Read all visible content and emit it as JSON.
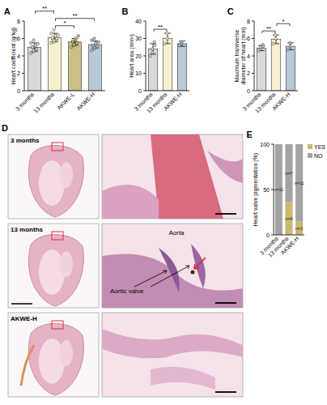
{
  "chart_data": [
    {
      "panel": "A",
      "type": "bar",
      "ylabel": "Heart coefficient (g/kg)",
      "categories": [
        "3 months",
        "13 months",
        "AKWE-L",
        "AKWE-H"
      ],
      "values": [
        5.0,
        6.1,
        5.6,
        5.3
      ],
      "errors": [
        0.5,
        0.5,
        0.4,
        0.4
      ],
      "points": [
        [
          4.3,
          4.5,
          4.6,
          4.7,
          4.8,
          5.0,
          5.0,
          5.1,
          5.2,
          5.4,
          5.5,
          5.8
        ],
        [
          5.5,
          5.6,
          5.8,
          5.9,
          6.0,
          6.0,
          6.1,
          6.2,
          6.3,
          6.4,
          6.6,
          7.0
        ],
        [
          5.0,
          5.2,
          5.3,
          5.4,
          5.5,
          5.6,
          5.7,
          5.8,
          6.0,
          6.3
        ],
        [
          4.6,
          4.8,
          5.0,
          5.0,
          5.1,
          5.2,
          5.2,
          5.3,
          5.5,
          5.6,
          5.8,
          6.0
        ]
      ],
      "colors": [
        "#d9d9d9",
        "#f7f0cf",
        "#cdbf8a",
        "#b9c9d6"
      ],
      "ylim": [
        0,
        8
      ],
      "yticks": [
        0,
        2,
        4,
        6,
        8
      ],
      "significance": [
        {
          "between": [
            "13 months",
            "AKWE-L"
          ],
          "label": "*"
        },
        {
          "between": [
            "13 months",
            "AKWE-H"
          ],
          "label": "**"
        },
        {
          "between": [
            "3 months",
            "13 months"
          ],
          "label": "**"
        }
      ]
    },
    {
      "panel": "B",
      "type": "bar",
      "ylabel": "Heart area (mm²)",
      "categories": [
        "3 months",
        "13 months",
        "AKWE-H"
      ],
      "values": [
        24,
        30,
        27
      ],
      "errors": [
        3,
        3,
        1.5
      ],
      "points": [
        [
          20,
          22,
          24,
          26,
          28
        ],
        [
          27,
          30,
          33
        ],
        [
          26,
          27,
          28
        ]
      ],
      "colors": [
        "#d9d9d9",
        "#f7f0cf",
        "#b9c9d6"
      ],
      "ylim": [
        0,
        40
      ],
      "yticks": [
        0,
        10,
        20,
        30,
        40
      ],
      "significance": [
        {
          "between": [
            "3 months",
            "13 months"
          ],
          "label": "**"
        }
      ]
    },
    {
      "panel": "C",
      "type": "bar",
      "ylabel": [
        "Maximum transverse",
        "diameter of heart (mm)"
      ],
      "categories": [
        "3 months",
        "13 months",
        "AKWE-H"
      ],
      "values": [
        4.9,
        5.9,
        5.1
      ],
      "errors": [
        0.3,
        0.5,
        0.4
      ],
      "points": [
        [
          4.6,
          4.8,
          5.0,
          5.1,
          5.3
        ],
        [
          5.4,
          6.0,
          6.4
        ],
        [
          4.7,
          5.1,
          5.5
        ]
      ],
      "colors": [
        "#d9d9d9",
        "#f7f0cf",
        "#b9c9d6"
      ],
      "ylim": [
        0,
        8
      ],
      "yticks": [
        0,
        2,
        4,
        6,
        8
      ],
      "significance": [
        {
          "between": [
            "3 months",
            "13 months"
          ],
          "label": "**"
        },
        {
          "between": [
            "13 months",
            "AKWE-H"
          ],
          "label": "*"
        }
      ]
    },
    {
      "panel": "E",
      "type": "bar",
      "stacked": true,
      "legend": "right",
      "ylabel": "Heart valve pigmentation (%)",
      "categories": [
        "3 months",
        "13 months",
        "AKWE-H"
      ],
      "series": [
        {
          "name": "YES",
          "color": "#c9b96f",
          "values": [
            0,
            36,
            15
          ],
          "labels": [
            null,
            "n=4",
            "n=2"
          ]
        },
        {
          "name": "NO",
          "color": "#a3a3a3",
          "values": [
            100,
            64,
            85
          ],
          "labels": [
            "n=11",
            "n=7",
            "n=11"
          ]
        }
      ],
      "ylim": [
        0,
        100
      ],
      "yticks": [
        0,
        50,
        100
      ]
    }
  ],
  "histology": {
    "panel": "D",
    "rows": [
      {
        "label": "3 months"
      },
      {
        "label": "13 months",
        "annotations": [
          "Aorta",
          "Aortic valve"
        ]
      },
      {
        "label": "AKWE-H"
      }
    ]
  }
}
